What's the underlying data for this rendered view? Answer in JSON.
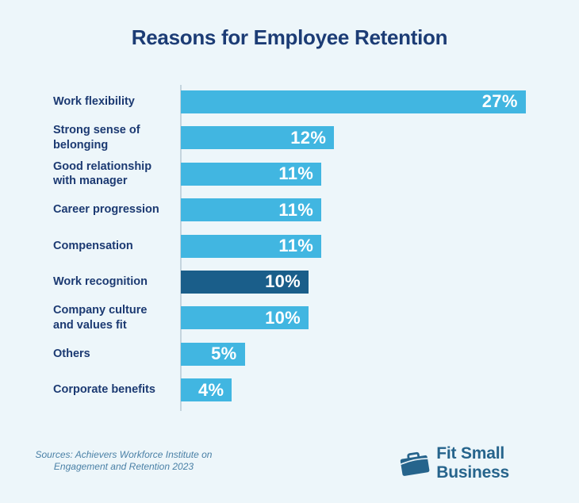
{
  "title": "Reasons for Employee Retention",
  "chart_data": {
    "type": "bar",
    "orientation": "horizontal",
    "categories": [
      "Work flexibility",
      "Strong sense of\nbelonging",
      "Good relationship\nwith manager",
      "Career progression",
      "Compensation",
      "Work recognition",
      "Company culture\nand values fit",
      "Others",
      "Corporate benefits"
    ],
    "values": [
      27,
      12,
      11,
      11,
      11,
      10,
      10,
      5,
      4
    ],
    "value_labels": [
      "27%",
      "12%",
      "11%",
      "11%",
      "11%",
      "10%",
      "10%",
      "5%",
      "4%"
    ],
    "highlight_index": 5,
    "xlim": [
      0,
      27
    ],
    "grid": false,
    "legend": "none",
    "title": "Reasons for Employee Retention",
    "xlabel": "",
    "ylabel": ""
  },
  "footer": {
    "sources": "Sources: Achievers Workforce Institute on\nEngagement and Retention 2023",
    "logo_text": "Fit Small Business",
    "logo_icon": "briefcase-icon"
  },
  "colors": {
    "background": "#edf6fa",
    "bar": "#41b6e1",
    "bar_highlight": "#1a5e8a",
    "bar_value_text": "#ffffff",
    "title_text": "#1c3c75",
    "category_text": "#1c3a72",
    "axis_line": "#c5d5de",
    "sources_text": "#4a80a6",
    "logo": "#26648c"
  }
}
